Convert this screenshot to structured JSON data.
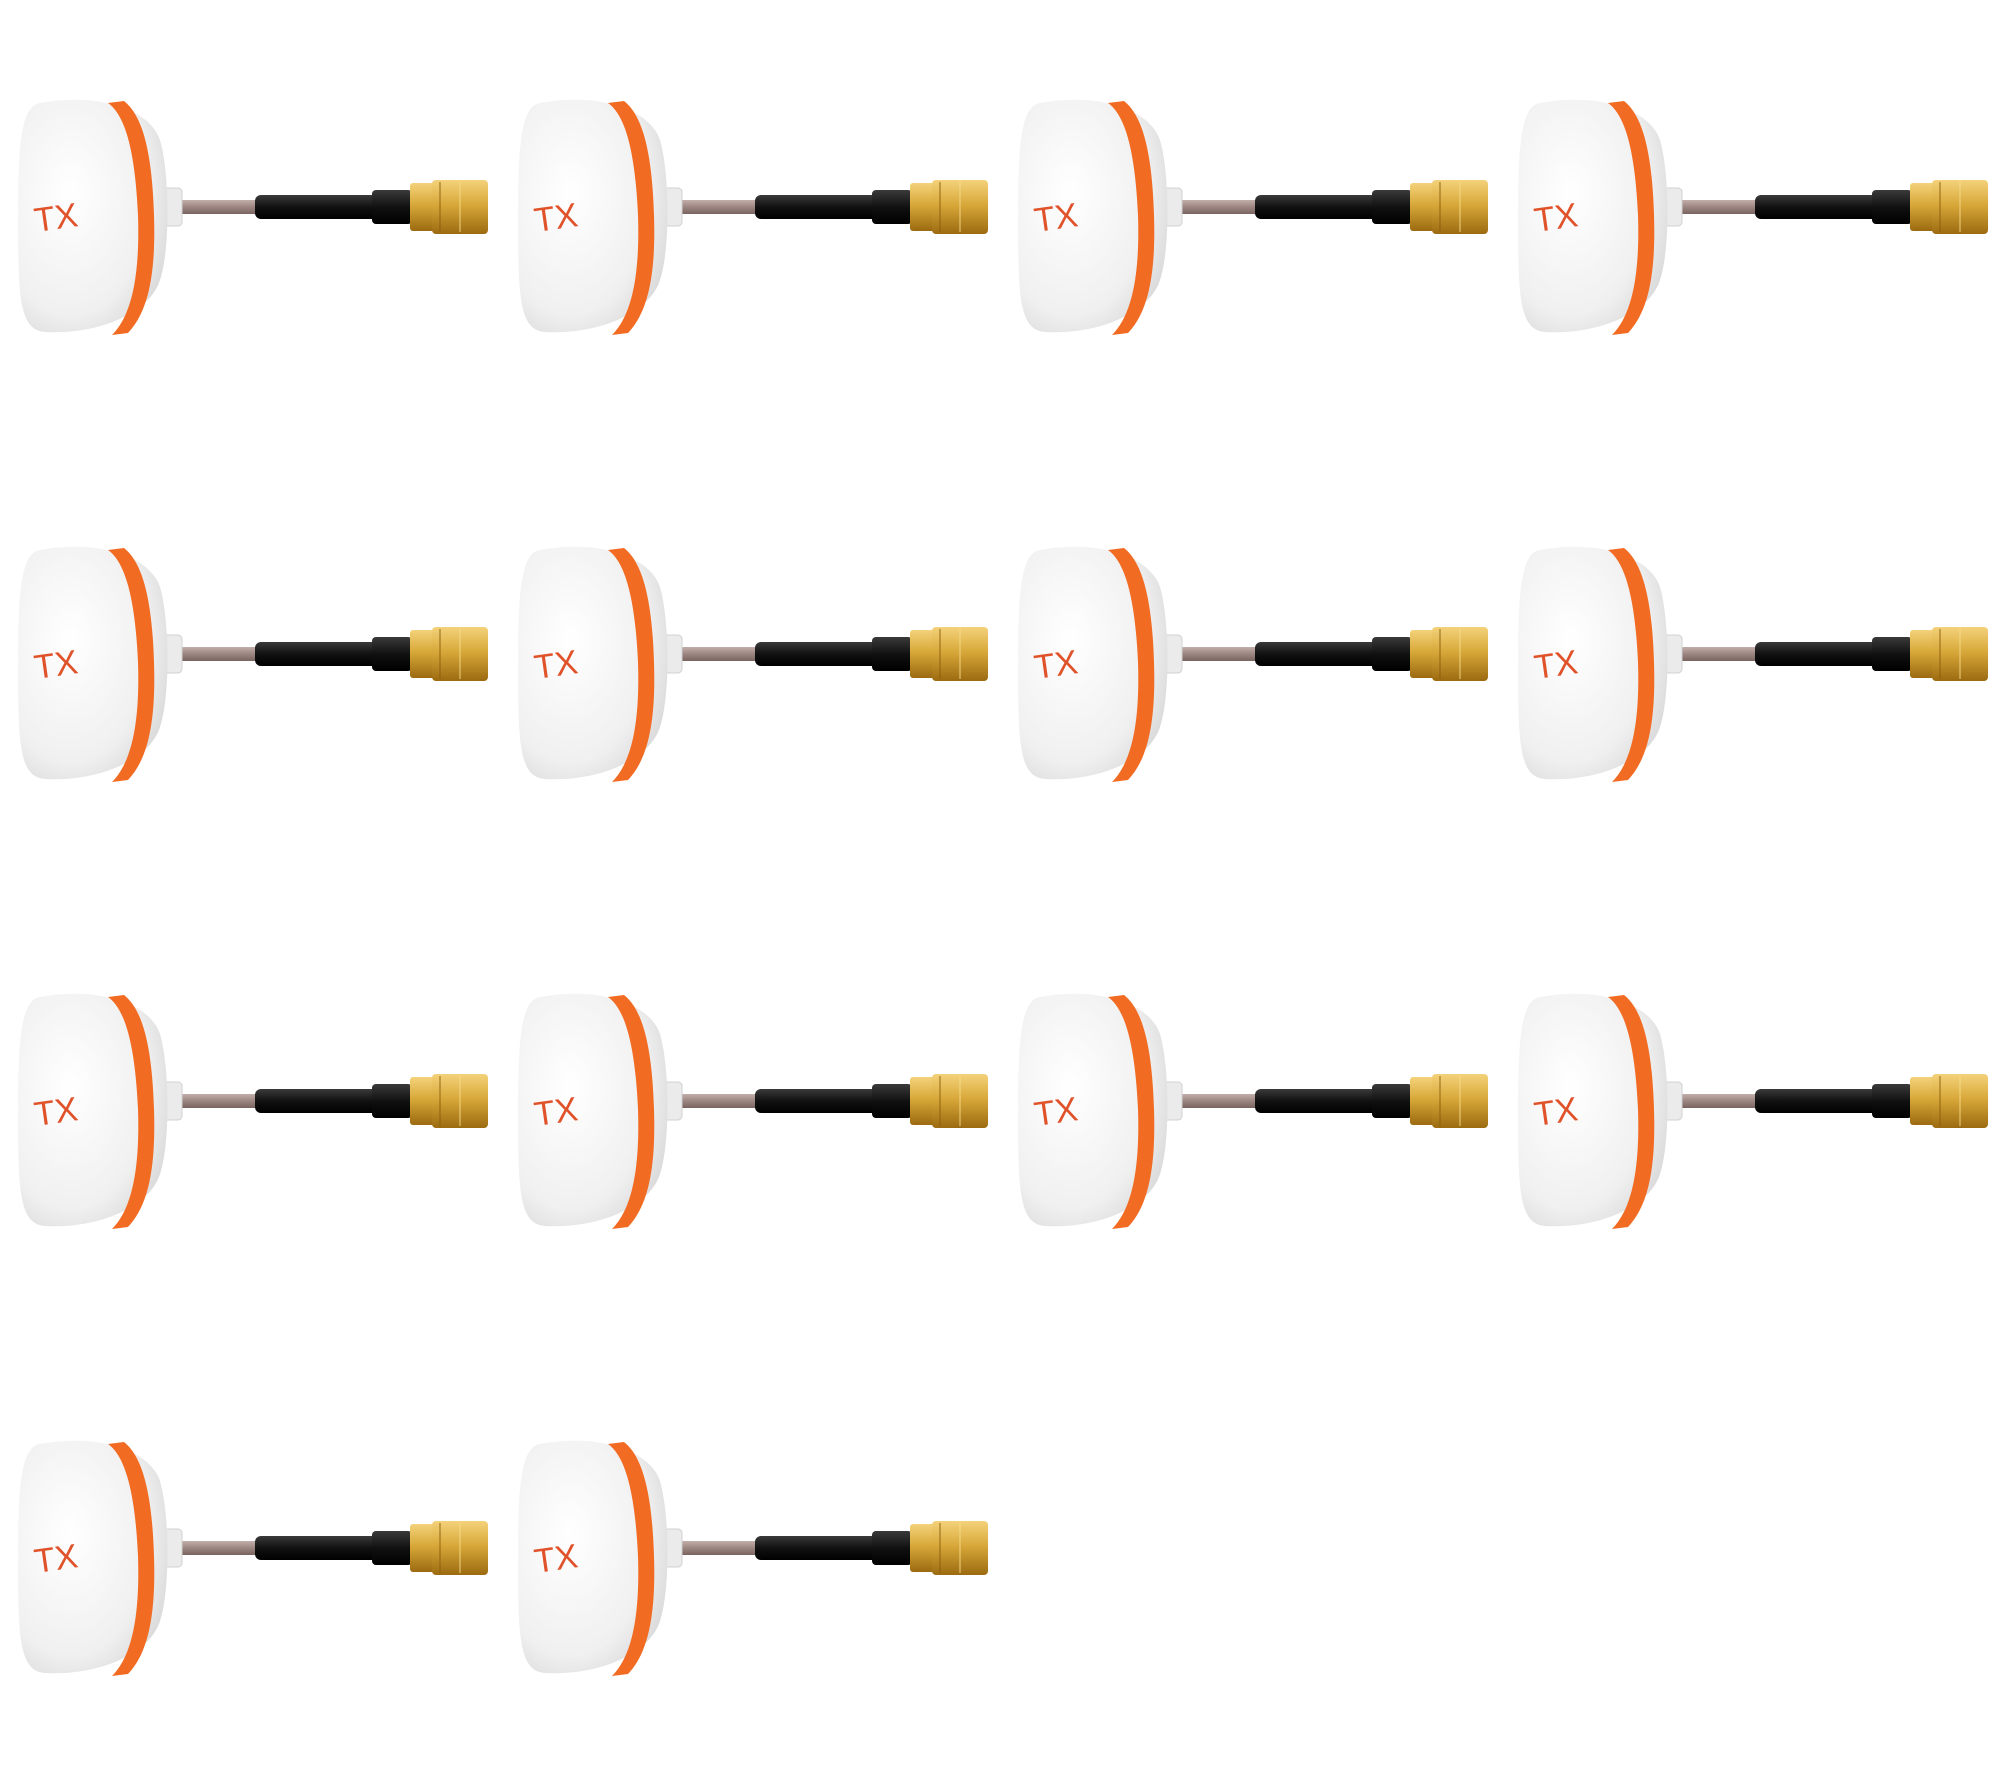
{
  "product": {
    "label": "TX",
    "count": 14,
    "columns": 4
  },
  "colors": {
    "background": "#ffffff",
    "dome": "#f2f2f2",
    "dome_shadow": "#d9d9d9",
    "stripe": "#f26b23",
    "label": "#e0522a",
    "neck": "#ebebeb",
    "cable_braid": "#a58f8c",
    "cable_black": "#151515",
    "connector_gold": "#d8a93a",
    "connector_dark": "#a06e12"
  }
}
